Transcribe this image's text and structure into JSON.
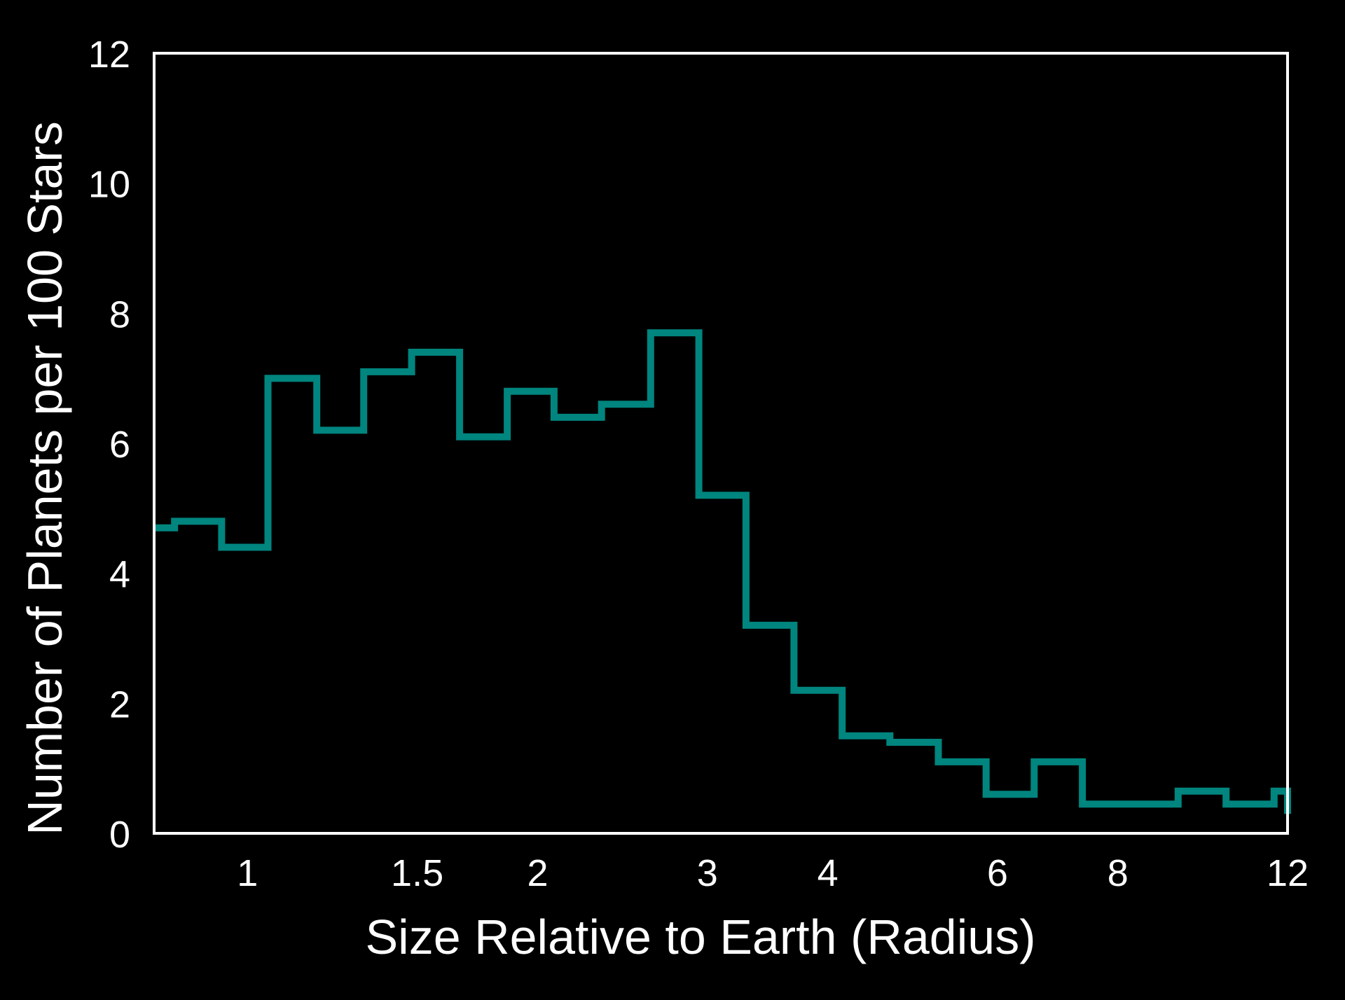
{
  "chart_data": {
    "type": "line",
    "step": true,
    "x_scale": "log",
    "xlabel": "Size Relative to Earth (Radius)",
    "ylabel": "Number of Planets per 100 Stars",
    "xlim": [
      0.8,
      12
    ],
    "ylim": [
      0,
      12
    ],
    "x_ticks": [
      1,
      1.5,
      2,
      3,
      4,
      6,
      8,
      12
    ],
    "x_tick_labels": [
      "1",
      "1.5",
      "2",
      "3",
      "4",
      "6",
      "8",
      "12"
    ],
    "y_ticks": [
      0,
      2,
      4,
      6,
      8,
      10,
      12
    ],
    "y_tick_labels": [
      "0",
      "2",
      "4",
      "6",
      "8",
      "10",
      "12"
    ],
    "grid": false,
    "colors": {
      "background": "#000000",
      "frame": "#ffffff",
      "series": "#00857f",
      "text": "#ffffff"
    },
    "series": [
      {
        "bin_edges": [
          0.8,
          0.84,
          0.94,
          1.05,
          1.18,
          1.32,
          1.48,
          1.66,
          1.86,
          2.08,
          2.33,
          2.62,
          2.94,
          3.29,
          3.69,
          4.14,
          4.64,
          5.21,
          5.84,
          6.55,
          7.35,
          8.24,
          9.24,
          10.36,
          11.62,
          12.0
        ],
        "values": [
          4.7,
          4.8,
          4.4,
          7.0,
          6.2,
          7.1,
          7.4,
          6.1,
          6.8,
          6.4,
          6.6,
          7.7,
          5.2,
          3.2,
          2.2,
          1.5,
          1.4,
          1.1,
          0.6,
          1.1,
          0.45,
          0.45,
          0.65,
          0.45,
          0.65
        ]
      }
    ]
  }
}
